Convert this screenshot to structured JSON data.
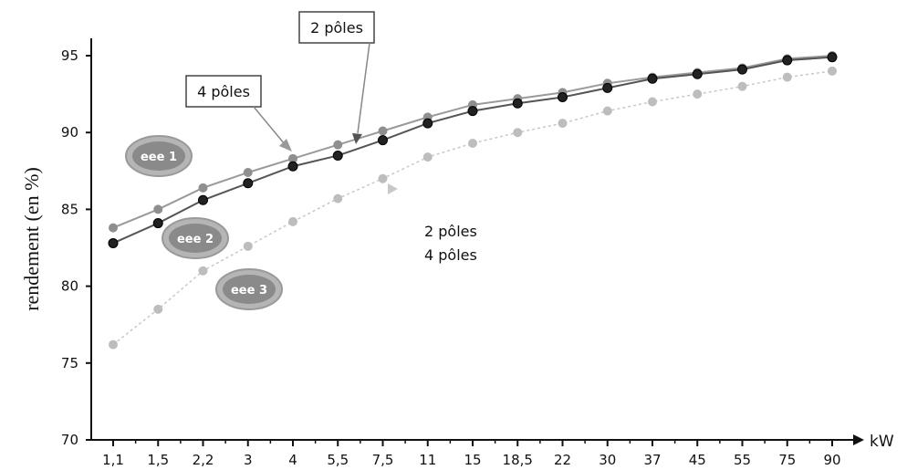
{
  "chart_data": {
    "type": "line",
    "title": "",
    "xlabel": "kW",
    "ylabel": "rendement (en %)",
    "ylim": [
      70,
      95
    ],
    "yticks": [
      70,
      75,
      80,
      85,
      90,
      95
    ],
    "categories": [
      "1,1",
      "1,5",
      "2,2",
      "3",
      "4",
      "5,5",
      "7,5",
      "11",
      "15",
      "18,5",
      "22",
      "30",
      "37",
      "45",
      "55",
      "75",
      "90"
    ],
    "grid": false,
    "series": [
      {
        "name": "",
        "class": "EEE 1 - 2 pôles",
        "color": "#9a9a9a",
        "marker": "#8f8f8f",
        "values": [
          83.8,
          85.0,
          86.4,
          87.4,
          88.3,
          89.2,
          90.1,
          91.0,
          91.8,
          92.2,
          92.6,
          93.2,
          93.6,
          93.9,
          94.2,
          94.8,
          95.0
        ]
      },
      {
        "name": "",
        "class": "EEE 1 - 4 pôles",
        "color": "#555555",
        "marker": "#222222",
        "values": [
          82.8,
          84.1,
          85.6,
          86.7,
          87.8,
          88.5,
          89.5,
          90.6,
          91.4,
          91.9,
          92.3,
          92.9,
          93.5,
          93.8,
          94.1,
          94.7,
          94.9
        ]
      },
      {
        "name": "",
        "class": "EEE 2",
        "color": "#c8c8c8",
        "marker": "#bdbdbd",
        "values": [
          76.2,
          78.5,
          81.0,
          82.6,
          84.2,
          85.7,
          87.0,
          88.4,
          89.3,
          90.0,
          90.6,
          91.4,
          92.0,
          92.5,
          93.0,
          93.6,
          94.0
        ]
      }
    ],
    "badges": [
      "eee 1",
      "eee 2",
      "eee 3"
    ],
    "callouts": {
      "four_poles_top": "4 pôles",
      "two_poles_top": "2 pôles",
      "two_poles_low": "2 pôles",
      "four_poles_low": "4 pôles"
    }
  }
}
